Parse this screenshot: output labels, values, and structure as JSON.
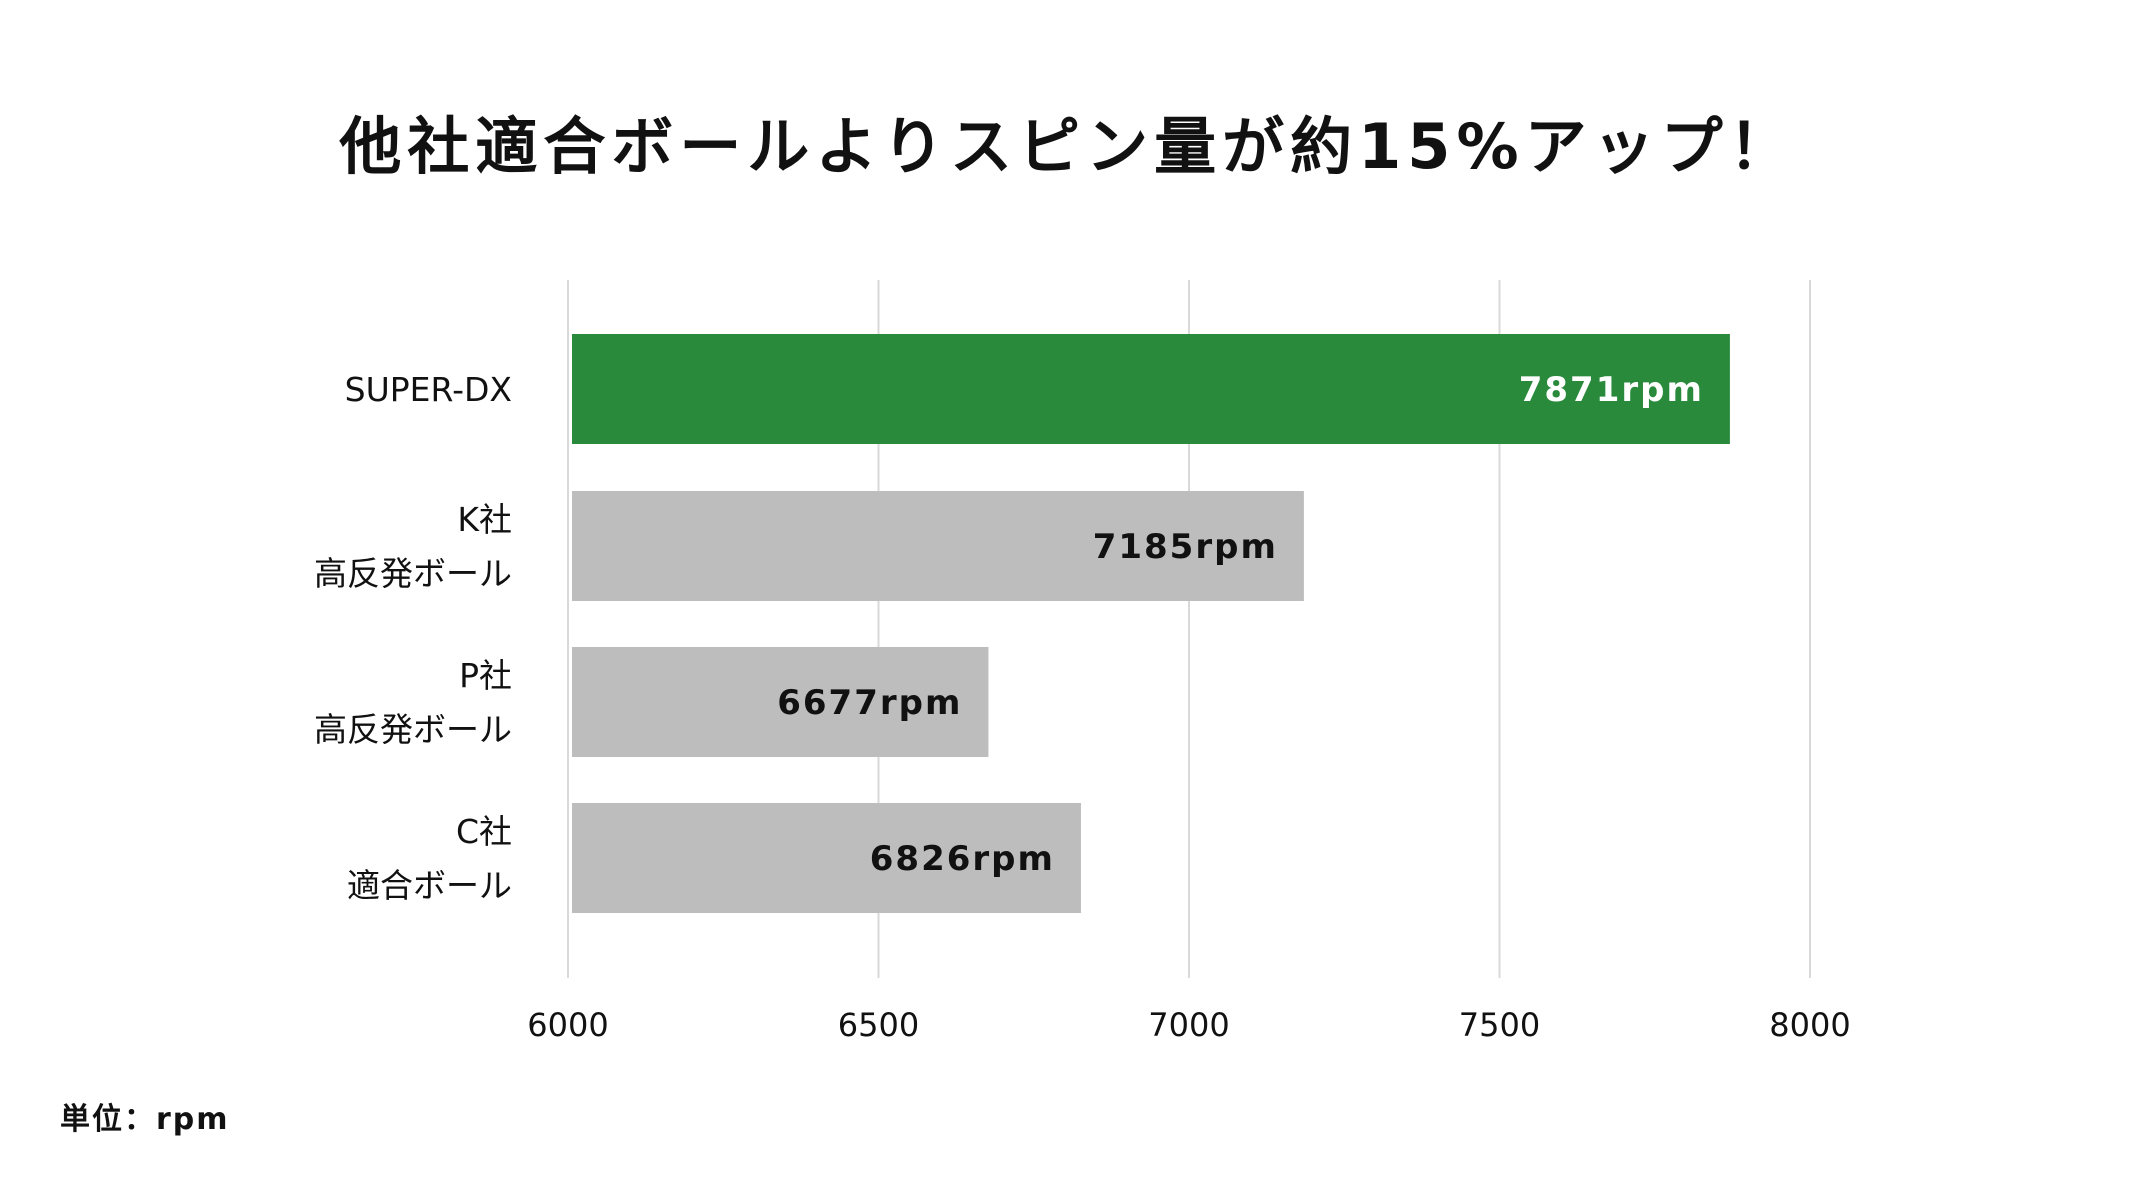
{
  "chart_data": {
    "type": "bar",
    "orientation": "horizontal",
    "title": "他社適合ボールよりスピン量が約15%アップ！",
    "categories": [
      [
        "SUPER-DX"
      ],
      [
        "K社",
        "高反発ボール"
      ],
      [
        "P社",
        "高反発ボール"
      ],
      [
        "C社",
        "適合ボール"
      ]
    ],
    "values": [
      7871,
      7185,
      6677,
      6826
    ],
    "value_labels": [
      "7871rpm",
      "7185rpm",
      "6677rpm",
      "6826rpm"
    ],
    "xlim": [
      6000,
      8000
    ],
    "ticks": [
      6000,
      6500,
      7000,
      7500,
      8000
    ],
    "tick_labels": [
      "6000",
      "6500",
      "7000",
      "7500",
      "8000"
    ],
    "grid": true,
    "legend": "none",
    "colors": {
      "highlight": "#2a8a3c",
      "other": "#bdbdbd",
      "highlight_label": "#ffffff",
      "other_label": "#111111",
      "grid": "#d9d9d9"
    },
    "unit_note": "単位：rpm"
  }
}
